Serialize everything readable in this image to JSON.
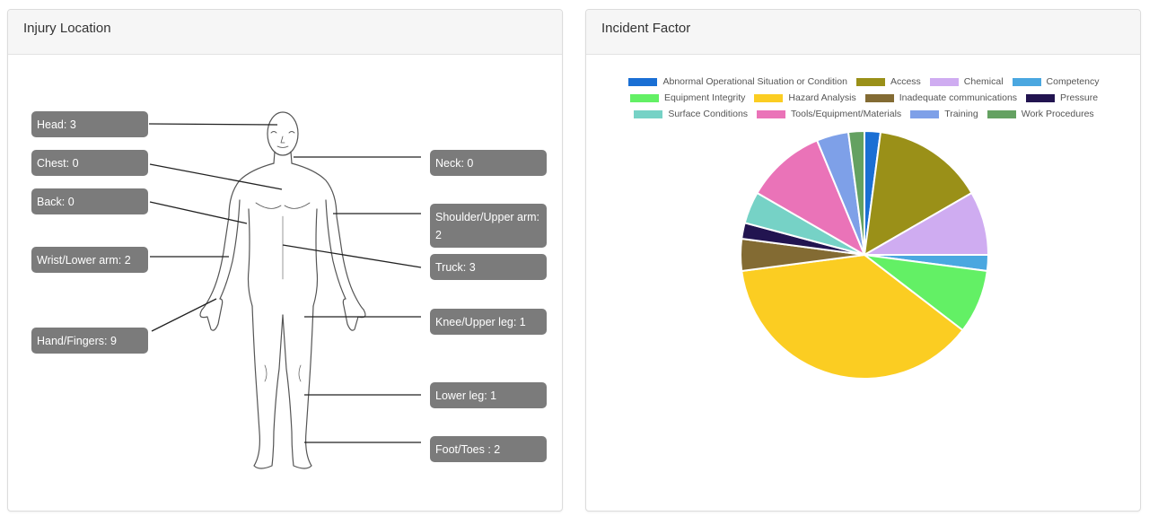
{
  "injury_card": {
    "title": "Injury Location",
    "labels": {
      "head": "Head: 3",
      "chest": "Chest: 0",
      "back": "Back: 0",
      "wrist": "Wrist/Lower arm: 2",
      "hand": "Hand/Fingers: 9",
      "neck": "Neck: 0",
      "shoulder": "Shoulder/Upper arm: 2",
      "truck": "Truck: 3",
      "knee": "Knee/Upper leg: 1",
      "lower_leg": "Lower leg: 1",
      "foot": "Foot/Toes : 2"
    }
  },
  "incident_card": {
    "title": "Incident Factor"
  },
  "chart_data": {
    "type": "pie",
    "title": "",
    "legend_position": "top",
    "series": [
      {
        "name": "Abnormal Operational Situation or Condition",
        "value": 1,
        "color": "#1a6fd4"
      },
      {
        "name": "Access",
        "value": 7,
        "color": "#9a9018"
      },
      {
        "name": "Chemical",
        "value": 4,
        "color": "#cfacf1"
      },
      {
        "name": "Competency",
        "value": 1,
        "color": "#4aa7e0"
      },
      {
        "name": "Equipment Integrity",
        "value": 4,
        "color": "#63f065"
      },
      {
        "name": "Hazard Analysis",
        "value": 18,
        "color": "#fbcd22"
      },
      {
        "name": "Inadequate communications",
        "value": 2,
        "color": "#836b33"
      },
      {
        "name": "Pressure",
        "value": 1,
        "color": "#221450"
      },
      {
        "name": "Surface Conditions",
        "value": 2,
        "color": "#76d2c6"
      },
      {
        "name": "Tools/Equipment/Materials",
        "value": 5,
        "color": "#ea73b8"
      },
      {
        "name": "Training",
        "value": 2,
        "color": "#7ea0e8"
      },
      {
        "name": "Work Procedures",
        "value": 1,
        "color": "#64a161"
      }
    ]
  }
}
